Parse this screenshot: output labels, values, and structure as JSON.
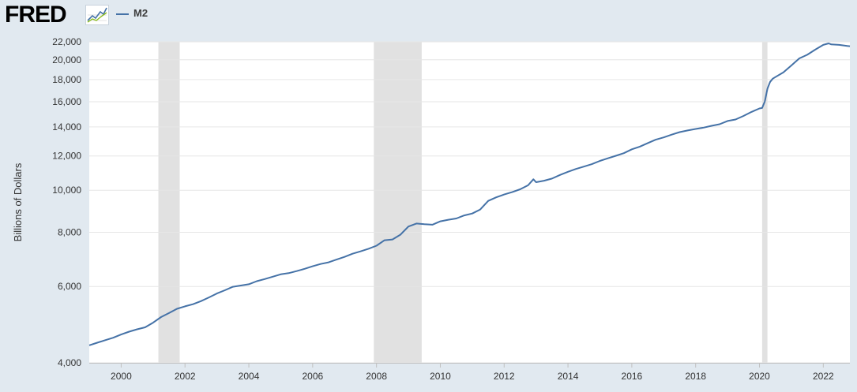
{
  "header": {
    "logo_text": "FRED",
    "logo_icon": "chart-line-icon"
  },
  "colors": {
    "page_background": "#e1e9f0",
    "plot_background": "#ffffff",
    "series": "#4572a7",
    "recession_band": "#e1e1e1",
    "gridline": "#e6e6e6"
  },
  "chart_data": {
    "type": "line",
    "title": "",
    "xlabel": "",
    "ylabel": "Billions of Dollars",
    "y_scale": "log",
    "xlim": [
      "1999-01-01",
      "2022-11-01"
    ],
    "ylim": [
      4000,
      22000
    ],
    "grid": true,
    "legend": "top-left",
    "x_ticks": [
      "2000",
      "2002",
      "2004",
      "2006",
      "2008",
      "2010",
      "2012",
      "2014",
      "2016",
      "2018",
      "2020",
      "2022"
    ],
    "y_ticks": [
      {
        "value": 4000,
        "label": "4,000"
      },
      {
        "value": 6000,
        "label": "6,000"
      },
      {
        "value": 8000,
        "label": "8,000"
      },
      {
        "value": 10000,
        "label": "10,000"
      },
      {
        "value": 12000,
        "label": "12,000"
      },
      {
        "value": 14000,
        "label": "14,000"
      },
      {
        "value": 16000,
        "label": "16,000"
      },
      {
        "value": 18000,
        "label": "18,000"
      },
      {
        "value": 20000,
        "label": "20,000"
      },
      {
        "value": 22000,
        "label": "22,000"
      }
    ],
    "recessions": [
      {
        "start": "2001-03-01",
        "end": "2001-11-01"
      },
      {
        "start": "2007-12-01",
        "end": "2009-06-01"
      },
      {
        "start": "2020-02-01",
        "end": "2020-04-01"
      }
    ],
    "series": [
      {
        "name": "M2",
        "points": [
          [
            "1999-01-01",
            4390
          ],
          [
            "1999-04-01",
            4450
          ],
          [
            "1999-07-01",
            4510
          ],
          [
            "1999-10-01",
            4570
          ],
          [
            "2000-01-01",
            4650
          ],
          [
            "2000-04-01",
            4720
          ],
          [
            "2000-07-01",
            4780
          ],
          [
            "2000-10-01",
            4830
          ],
          [
            "2001-01-01",
            4950
          ],
          [
            "2001-04-01",
            5100
          ],
          [
            "2001-07-01",
            5210
          ],
          [
            "2001-10-01",
            5330
          ],
          [
            "2002-01-01",
            5400
          ],
          [
            "2002-04-01",
            5460
          ],
          [
            "2002-07-01",
            5550
          ],
          [
            "2002-10-01",
            5660
          ],
          [
            "2003-01-01",
            5780
          ],
          [
            "2003-04-01",
            5880
          ],
          [
            "2003-07-01",
            5990
          ],
          [
            "2003-10-01",
            6030
          ],
          [
            "2004-01-01",
            6070
          ],
          [
            "2004-04-01",
            6170
          ],
          [
            "2004-07-01",
            6240
          ],
          [
            "2004-10-01",
            6320
          ],
          [
            "2005-01-01",
            6400
          ],
          [
            "2005-04-01",
            6440
          ],
          [
            "2005-07-01",
            6510
          ],
          [
            "2005-10-01",
            6590
          ],
          [
            "2006-01-01",
            6680
          ],
          [
            "2006-04-01",
            6760
          ],
          [
            "2006-07-01",
            6820
          ],
          [
            "2006-10-01",
            6920
          ],
          [
            "2007-01-01",
            7020
          ],
          [
            "2007-04-01",
            7140
          ],
          [
            "2007-07-01",
            7230
          ],
          [
            "2007-10-01",
            7330
          ],
          [
            "2008-01-01",
            7450
          ],
          [
            "2008-04-01",
            7670
          ],
          [
            "2008-07-01",
            7700
          ],
          [
            "2008-10-01",
            7900
          ],
          [
            "2009-01-01",
            8250
          ],
          [
            "2009-04-01",
            8380
          ],
          [
            "2009-07-01",
            8350
          ],
          [
            "2009-10-01",
            8330
          ],
          [
            "2010-01-01",
            8480
          ],
          [
            "2010-04-01",
            8550
          ],
          [
            "2010-07-01",
            8610
          ],
          [
            "2010-10-01",
            8750
          ],
          [
            "2011-01-01",
            8840
          ],
          [
            "2011-04-01",
            9030
          ],
          [
            "2011-07-01",
            9450
          ],
          [
            "2011-10-01",
            9630
          ],
          [
            "2012-01-01",
            9780
          ],
          [
            "2012-04-01",
            9900
          ],
          [
            "2012-07-01",
            10050
          ],
          [
            "2012-10-01",
            10270
          ],
          [
            "2012-12-01",
            10600
          ],
          [
            "2013-01-01",
            10440
          ],
          [
            "2013-04-01",
            10520
          ],
          [
            "2013-07-01",
            10640
          ],
          [
            "2013-10-01",
            10850
          ],
          [
            "2014-01-01",
            11030
          ],
          [
            "2014-04-01",
            11200
          ],
          [
            "2014-07-01",
            11340
          ],
          [
            "2014-10-01",
            11490
          ],
          [
            "2015-01-01",
            11690
          ],
          [
            "2015-04-01",
            11850
          ],
          [
            "2015-07-01",
            12010
          ],
          [
            "2015-10-01",
            12180
          ],
          [
            "2016-01-01",
            12430
          ],
          [
            "2016-04-01",
            12610
          ],
          [
            "2016-07-01",
            12850
          ],
          [
            "2016-10-01",
            13080
          ],
          [
            "2017-01-01",
            13240
          ],
          [
            "2017-04-01",
            13440
          ],
          [
            "2017-07-01",
            13620
          ],
          [
            "2017-10-01",
            13740
          ],
          [
            "2018-01-01",
            13850
          ],
          [
            "2018-04-01",
            13950
          ],
          [
            "2018-07-01",
            14080
          ],
          [
            "2018-10-01",
            14200
          ],
          [
            "2019-01-01",
            14450
          ],
          [
            "2019-04-01",
            14560
          ],
          [
            "2019-07-01",
            14840
          ],
          [
            "2019-10-01",
            15160
          ],
          [
            "2020-01-01",
            15440
          ],
          [
            "2020-02-01",
            15480
          ],
          [
            "2020-03-01",
            16030
          ],
          [
            "2020-04-01",
            17150
          ],
          [
            "2020-05-01",
            17780
          ],
          [
            "2020-06-01",
            18090
          ],
          [
            "2020-07-01",
            18240
          ],
          [
            "2020-10-01",
            18700
          ],
          [
            "2021-01-01",
            19400
          ],
          [
            "2021-04-01",
            20150
          ],
          [
            "2021-07-01",
            20540
          ],
          [
            "2021-10-01",
            21110
          ],
          [
            "2022-01-01",
            21640
          ],
          [
            "2022-03-01",
            21820
          ],
          [
            "2022-04-01",
            21700
          ],
          [
            "2022-07-01",
            21640
          ],
          [
            "2022-10-01",
            21520
          ],
          [
            "2022-11-01",
            21490
          ]
        ]
      }
    ]
  }
}
